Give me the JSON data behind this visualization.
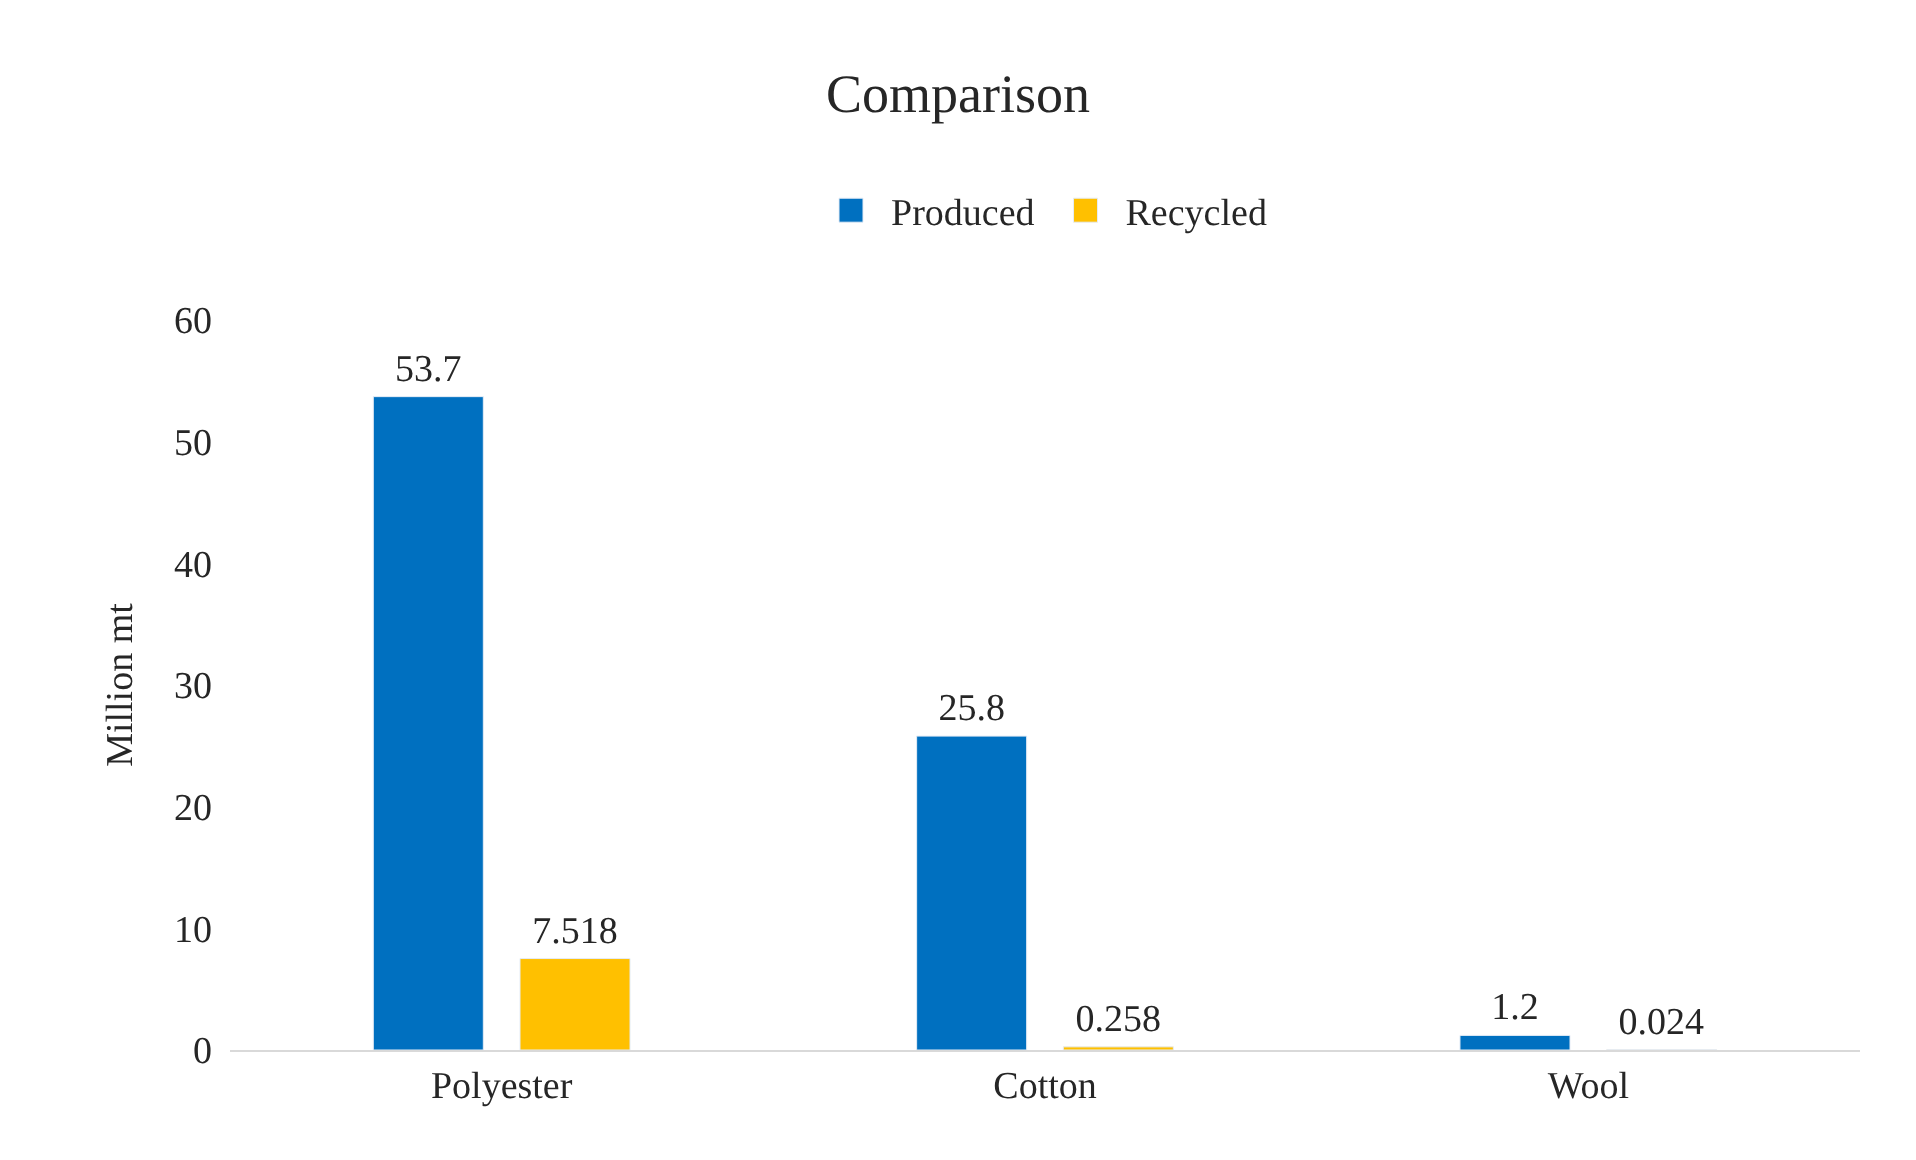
{
  "chart_data": {
    "type": "bar",
    "title": "Comparison",
    "ylabel": "Million mt",
    "categories": [
      "Polyester",
      "Cotton",
      "Wool"
    ],
    "series": [
      {
        "name": "Produced",
        "color": "#0070c0",
        "values": [
          53.7,
          25.8,
          1.2
        ]
      },
      {
        "name": "Recycled",
        "color": "#ffc000",
        "values": [
          7.518,
          0.258,
          0.024
        ]
      }
    ],
    "ylim": [
      0,
      60
    ],
    "yticks": [
      0,
      10,
      20,
      30,
      40,
      50,
      60
    ],
    "grid": false,
    "legend": "top",
    "data_labels": true
  }
}
